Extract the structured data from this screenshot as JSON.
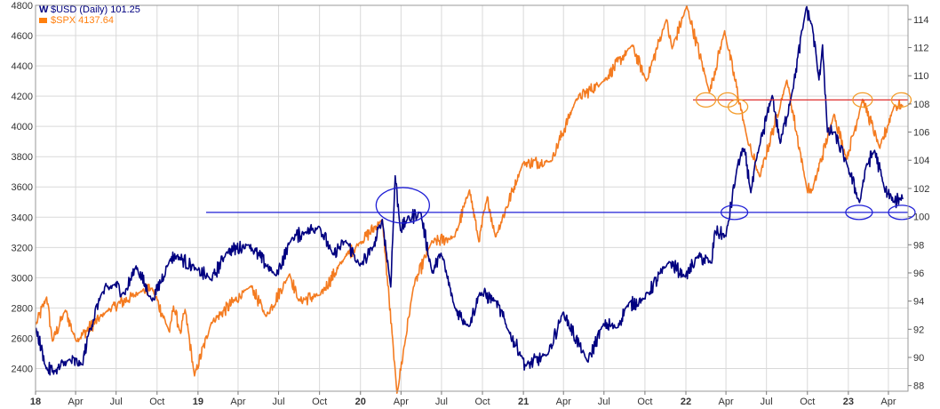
{
  "legend": {
    "usd": {
      "label": "$USD (Daily) 101.25",
      "color": "#000080",
      "icon": "chart-symbol-icon"
    },
    "spx": {
      "label": "$SPX 4137.64",
      "color": "#ff7f0e"
    }
  },
  "colors": {
    "grid": "#d9d9d9",
    "frame": "#999999",
    "usd": "#000080",
    "spx": "#f47b20",
    "annotation_blue": "#1f1fd6",
    "annotation_red": "#e03030",
    "annotation_orange": "#f39c2a"
  },
  "chart_data": {
    "type": "line",
    "grid": true,
    "x_axis": {
      "range": [
        "2018-01-01",
        "2023-05-15"
      ],
      "ticks": [
        {
          "date": "2018-01-01",
          "label": "18",
          "bold": true
        },
        {
          "date": "2018-04-01",
          "label": "Apr"
        },
        {
          "date": "2018-07-01",
          "label": "Jul"
        },
        {
          "date": "2018-10-01",
          "label": "Oct"
        },
        {
          "date": "2019-01-01",
          "label": "19",
          "bold": true
        },
        {
          "date": "2019-04-01",
          "label": "Apr"
        },
        {
          "date": "2019-07-01",
          "label": "Jul"
        },
        {
          "date": "2019-10-01",
          "label": "Oct"
        },
        {
          "date": "2020-01-01",
          "label": "20",
          "bold": true
        },
        {
          "date": "2020-04-01",
          "label": "Apr"
        },
        {
          "date": "2020-07-01",
          "label": "Jul"
        },
        {
          "date": "2020-10-01",
          "label": "Oct"
        },
        {
          "date": "2021-01-01",
          "label": "21",
          "bold": true
        },
        {
          "date": "2021-04-01",
          "label": "Apr"
        },
        {
          "date": "2021-07-01",
          "label": "Jul"
        },
        {
          "date": "2021-10-01",
          "label": "Oct"
        },
        {
          "date": "2022-01-01",
          "label": "22",
          "bold": true
        },
        {
          "date": "2022-04-01",
          "label": "Apr"
        },
        {
          "date": "2022-07-01",
          "label": "Jul"
        },
        {
          "date": "2022-10-01",
          "label": "Oct"
        },
        {
          "date": "2023-01-01",
          "label": "23",
          "bold": true
        },
        {
          "date": "2023-04-01",
          "label": "Apr"
        }
      ]
    },
    "y_left": {
      "range": [
        2250,
        4800
      ],
      "ticks": [
        2400,
        2600,
        2800,
        3000,
        3200,
        3400,
        3600,
        3800,
        4000,
        4200,
        4400,
        4600,
        4800
      ]
    },
    "y_right": {
      "range": [
        87.6,
        115
      ],
      "ticks": [
        88,
        90,
        92,
        94,
        96,
        98,
        100,
        102,
        104,
        106,
        108,
        110,
        112,
        114
      ]
    },
    "series": [
      {
        "name": "$USD (Daily) 101.25",
        "axis": "right",
        "color": "#000080",
        "points": [
          [
            "2018-01-02",
            92.1
          ],
          [
            "2018-01-25",
            89.2
          ],
          [
            "2018-02-15",
            89.0
          ],
          [
            "2018-03-15",
            89.8
          ],
          [
            "2018-04-16",
            89.5
          ],
          [
            "2018-05-01",
            91.8
          ],
          [
            "2018-05-29",
            94.5
          ],
          [
            "2018-06-28",
            95.2
          ],
          [
            "2018-07-20",
            94.5
          ],
          [
            "2018-08-15",
            96.5
          ],
          [
            "2018-09-20",
            94.0
          ],
          [
            "2018-10-31",
            97.0
          ],
          [
            "2018-11-15",
            97.2
          ],
          [
            "2018-12-31",
            96.2
          ],
          [
            "2019-01-31",
            95.5
          ],
          [
            "2019-03-07",
            97.5
          ],
          [
            "2019-04-25",
            98.0
          ],
          [
            "2019-06-25",
            95.8
          ],
          [
            "2019-07-31",
            98.5
          ],
          [
            "2019-09-01",
            98.9
          ],
          [
            "2019-09-30",
            99.3
          ],
          [
            "2019-10-31",
            97.3
          ],
          [
            "2019-11-29",
            98.3
          ],
          [
            "2019-12-31",
            96.5
          ],
          [
            "2020-01-31",
            97.9
          ],
          [
            "2020-02-19",
            99.8
          ],
          [
            "2020-03-09",
            95.0
          ],
          [
            "2020-03-19",
            102.9
          ],
          [
            "2020-03-31",
            99.0
          ],
          [
            "2020-04-15",
            99.8
          ],
          [
            "2020-05-15",
            100.3
          ],
          [
            "2020-06-10",
            96.0
          ],
          [
            "2020-06-30",
            97.4
          ],
          [
            "2020-07-31",
            93.5
          ],
          [
            "2020-08-31",
            92.2
          ],
          [
            "2020-09-25",
            94.6
          ],
          [
            "2020-10-31",
            94.0
          ],
          [
            "2020-11-30",
            91.8
          ],
          [
            "2020-12-31",
            89.9
          ],
          [
            "2021-01-06",
            89.4
          ],
          [
            "2021-02-25",
            90.2
          ],
          [
            "2021-03-31",
            93.2
          ],
          [
            "2021-05-25",
            89.7
          ],
          [
            "2021-06-30",
            92.4
          ],
          [
            "2021-07-30",
            92.1
          ],
          [
            "2021-08-20",
            93.6
          ],
          [
            "2021-09-30",
            94.2
          ],
          [
            "2021-11-24",
            96.8
          ],
          [
            "2021-12-31",
            95.7
          ],
          [
            "2022-01-28",
            97.2
          ],
          [
            "2022-02-28",
            96.7
          ],
          [
            "2022-03-07",
            99.0
          ],
          [
            "2022-04-01",
            98.6
          ],
          [
            "2022-04-28",
            103.8
          ],
          [
            "2022-05-13",
            104.8
          ],
          [
            "2022-05-27",
            101.7
          ],
          [
            "2022-06-15",
            105.0
          ],
          [
            "2022-07-14",
            108.6
          ],
          [
            "2022-08-01",
            105.2
          ],
          [
            "2022-08-29",
            109.0
          ],
          [
            "2022-09-28",
            114.8
          ],
          [
            "2022-10-12",
            113.5
          ],
          [
            "2022-10-27",
            109.7
          ],
          [
            "2022-11-04",
            112.2
          ],
          [
            "2022-11-15",
            106.0
          ],
          [
            "2022-11-30",
            106.0
          ],
          [
            "2022-12-31",
            103.5
          ],
          [
            "2023-01-26",
            101.0
          ],
          [
            "2023-02-10",
            103.6
          ],
          [
            "2023-03-01",
            104.7
          ],
          [
            "2023-03-23",
            102.0
          ],
          [
            "2023-04-14",
            101.0
          ],
          [
            "2023-04-28",
            101.3
          ],
          [
            "2023-05-04",
            101.25
          ]
        ]
      },
      {
        "name": "$SPX 4137.64",
        "axis": "left",
        "color": "#f47b20",
        "points": [
          [
            "2018-01-02",
            2690
          ],
          [
            "2018-01-26",
            2872
          ],
          [
            "2018-02-08",
            2581
          ],
          [
            "2018-03-09",
            2786
          ],
          [
            "2018-04-02",
            2582
          ],
          [
            "2018-06-12",
            2785
          ],
          [
            "2018-08-29",
            2914
          ],
          [
            "2018-09-20",
            2931
          ],
          [
            "2018-10-29",
            2641
          ],
          [
            "2018-11-07",
            2813
          ],
          [
            "2018-11-23",
            2632
          ],
          [
            "2018-12-03",
            2790
          ],
          [
            "2018-12-24",
            2351
          ],
          [
            "2019-01-31",
            2704
          ],
          [
            "2019-04-30",
            2946
          ],
          [
            "2019-06-03",
            2744
          ],
          [
            "2019-07-26",
            3025
          ],
          [
            "2019-08-15",
            2847
          ],
          [
            "2019-10-03",
            2887
          ],
          [
            "2019-11-29",
            3141
          ],
          [
            "2019-12-31",
            3231
          ],
          [
            "2020-02-19",
            3386
          ],
          [
            "2020-03-23",
            2237
          ],
          [
            "2020-04-29",
            2940
          ],
          [
            "2020-06-08",
            3232
          ],
          [
            "2020-07-31",
            3271
          ],
          [
            "2020-09-02",
            3580
          ],
          [
            "2020-09-23",
            3237
          ],
          [
            "2020-10-12",
            3535
          ],
          [
            "2020-10-30",
            3270
          ],
          [
            "2020-12-31",
            3756
          ],
          [
            "2021-03-04",
            3768
          ],
          [
            "2021-04-30",
            4181
          ],
          [
            "2021-06-30",
            4298
          ],
          [
            "2021-09-02",
            4537
          ],
          [
            "2021-10-04",
            4300
          ],
          [
            "2021-11-18",
            4705
          ],
          [
            "2021-12-01",
            4513
          ],
          [
            "2022-01-03",
            4796
          ],
          [
            "2022-02-23",
            4225
          ],
          [
            "2022-03-29",
            4632
          ],
          [
            "2022-05-20",
            3901
          ],
          [
            "2022-06-16",
            3667
          ],
          [
            "2022-08-16",
            4305
          ],
          [
            "2022-09-30",
            3586
          ],
          [
            "2022-10-12",
            3577
          ],
          [
            "2022-11-30",
            4080
          ],
          [
            "2022-12-28",
            3783
          ],
          [
            "2023-02-02",
            4179
          ],
          [
            "2023-03-13",
            3855
          ],
          [
            "2023-04-14",
            4137
          ],
          [
            "2023-05-04",
            4137.64
          ]
        ]
      }
    ],
    "annotations": {
      "usd_support_line": {
        "value": 100.3,
        "axis": "right",
        "from": "2019-01-01",
        "to": "2023-05-15",
        "color": "#1f1fd6"
      },
      "usd_circles": [
        {
          "date": "2020-04-05",
          "value": 100.8,
          "big": true
        },
        {
          "date": "2022-04-20",
          "value": 100.3
        },
        {
          "date": "2023-01-25",
          "value": 100.3
        },
        {
          "date": "2023-05-01",
          "value": 100.3
        }
      ],
      "spx_resistance_line": {
        "value": 4175,
        "axis": "left",
        "from": "2022-01-01",
        "to": "2023-05-15",
        "color": "#e03030"
      },
      "spx_circles": [
        {
          "date": "2022-02-15",
          "value": 4175
        },
        {
          "date": "2022-04-05",
          "value": 4175
        },
        {
          "date": "2022-04-28",
          "value": 4130
        },
        {
          "date": "2023-02-02",
          "value": 4175
        },
        {
          "date": "2023-04-30",
          "value": 4175
        }
      ]
    }
  }
}
